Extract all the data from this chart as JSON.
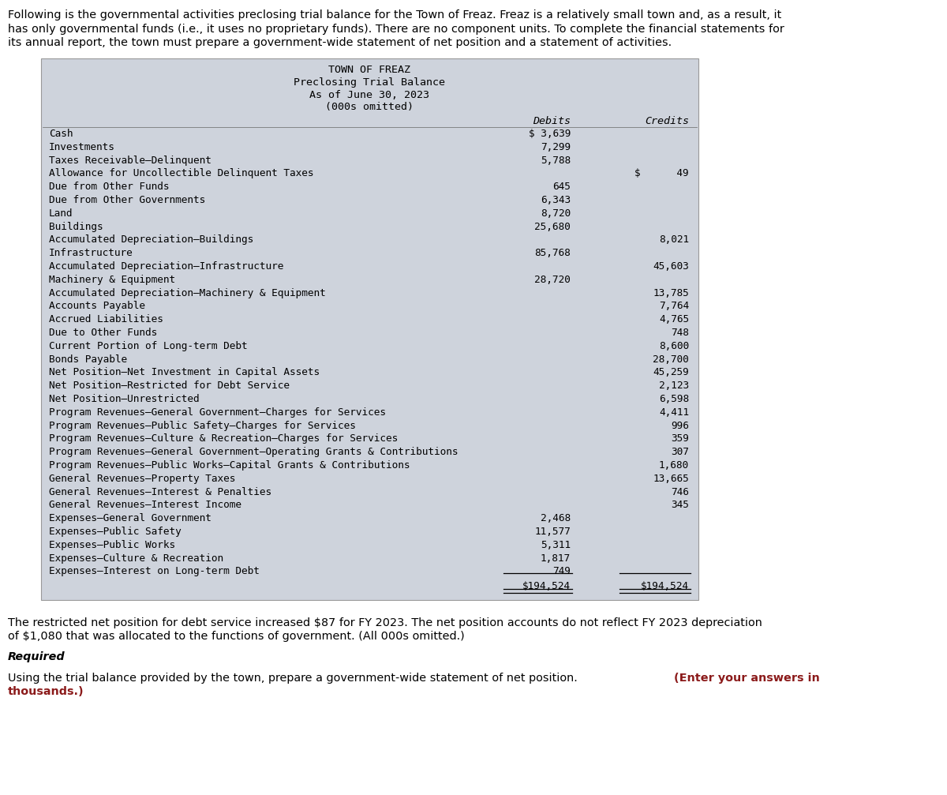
{
  "intro_text_lines": [
    "Following is the governmental activities preclosing trial balance for the Town of Freaz. Freaz is a relatively small town and, as a result, it",
    "has only governmental funds (i.e., it uses no proprietary funds). There are no component units. To complete the financial statements for",
    "its annual report, the town must prepare a government-wide statement of net position and a statement of activities."
  ],
  "title_lines": [
    "TOWN OF FREAZ",
    "Preclosing Trial Balance",
    "As of June 30, 2023",
    "(000s omitted)"
  ],
  "col_headers": [
    "Debits",
    "Credits"
  ],
  "rows": [
    {
      "label": "Cash",
      "debit": "$ 3,639",
      "credit": ""
    },
    {
      "label": "Investments",
      "debit": "7,299",
      "credit": ""
    },
    {
      "label": "Taxes Receivable–Delinquent",
      "debit": "5,788",
      "credit": ""
    },
    {
      "label": "Allowance for Uncollectible Delinquent Taxes",
      "debit": "",
      "credit": "$      49"
    },
    {
      "label": "Due from Other Funds",
      "debit": "645",
      "credit": ""
    },
    {
      "label": "Due from Other Governments",
      "debit": "6,343",
      "credit": ""
    },
    {
      "label": "Land",
      "debit": "8,720",
      "credit": ""
    },
    {
      "label": "Buildings",
      "debit": "25,680",
      "credit": ""
    },
    {
      "label": "Accumulated Depreciation–Buildings",
      "debit": "",
      "credit": "8,021"
    },
    {
      "label": "Infrastructure",
      "debit": "85,768",
      "credit": ""
    },
    {
      "label": "Accumulated Depreciation–Infrastructure",
      "debit": "",
      "credit": "45,603"
    },
    {
      "label": "Machinery & Equipment",
      "debit": "28,720",
      "credit": ""
    },
    {
      "label": "Accumulated Depreciation–Machinery & Equipment",
      "debit": "",
      "credit": "13,785"
    },
    {
      "label": "Accounts Payable",
      "debit": "",
      "credit": "7,764"
    },
    {
      "label": "Accrued Liabilities",
      "debit": "",
      "credit": "4,765"
    },
    {
      "label": "Due to Other Funds",
      "debit": "",
      "credit": "748"
    },
    {
      "label": "Current Portion of Long-term Debt",
      "debit": "",
      "credit": "8,600"
    },
    {
      "label": "Bonds Payable",
      "debit": "",
      "credit": "28,700"
    },
    {
      "label": "Net Position–Net Investment in Capital Assets",
      "debit": "",
      "credit": "45,259"
    },
    {
      "label": "Net Position–Restricted for Debt Service",
      "debit": "",
      "credit": "2,123"
    },
    {
      "label": "Net Position–Unrestricted",
      "debit": "",
      "credit": "6,598"
    },
    {
      "label": "Program Revenues–General Government–Charges for Services",
      "debit": "",
      "credit": "4,411"
    },
    {
      "label": "Program Revenues–Public Safety–Charges for Services",
      "debit": "",
      "credit": "996"
    },
    {
      "label": "Program Revenues–Culture & Recreation–Charges for Services",
      "debit": "",
      "credit": "359"
    },
    {
      "label": "Program Revenues–General Government–Operating Grants & Contributions",
      "debit": "",
      "credit": "307"
    },
    {
      "label": "Program Revenues–Public Works–Capital Grants & Contributions",
      "debit": "",
      "credit": "1,680"
    },
    {
      "label": "General Revenues–Property Taxes",
      "debit": "",
      "credit": "13,665"
    },
    {
      "label": "General Revenues–Interest & Penalties",
      "debit": "",
      "credit": "746"
    },
    {
      "label": "General Revenues–Interest Income",
      "debit": "",
      "credit": "345"
    },
    {
      "label": "Expenses–General Government",
      "debit": "2,468",
      "credit": ""
    },
    {
      "label": "Expenses–Public Safety",
      "debit": "11,577",
      "credit": ""
    },
    {
      "label": "Expenses–Public Works",
      "debit": "5,311",
      "credit": ""
    },
    {
      "label": "Expenses–Culture & Recreation",
      "debit": "1,817",
      "credit": ""
    },
    {
      "label": "Expenses–Interest on Long-term Debt",
      "debit": "749",
      "credit": ""
    }
  ],
  "total_debit": "$194,524",
  "total_credit": "$194,524",
  "footer_line1": "The restricted net position for debt service increased $87 for FY 2023. The net position accounts do not reflect FY 2023 depreciation",
  "footer_line2": "of $1,080 that was allocated to the functions of government. (All 000s omitted.)",
  "required_label": "Required",
  "req_normal": "Using the trial balance provided by the town, prepare a government-wide statement of net position. ",
  "req_bold_red": "(Enter your answers in thousands.)",
  "bg_color": "#ced3dc",
  "border_color": "#999999",
  "text_color": "#000000",
  "red_color": "#8B1A1A",
  "intro_fontsize": 10.4,
  "title_fontsize": 9.6,
  "header_fontsize": 9.6,
  "row_fontsize": 9.2,
  "footer_fontsize": 10.4,
  "fig_width": 12.0,
  "fig_height": 10.07,
  "dpi": 100
}
